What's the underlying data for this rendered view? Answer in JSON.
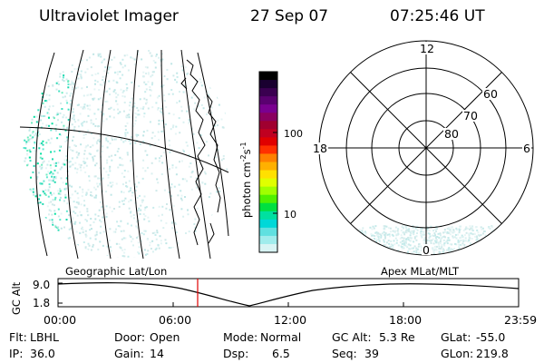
{
  "header": {
    "instrument": "Ultraviolet Imager",
    "date": "27 Sep 07",
    "time": "07:25:46 UT"
  },
  "colorbar": {
    "label": "photon cm",
    "label_sup1": "-2",
    "label_s": "s",
    "label_sup2": "-1",
    "ticks": [
      "100",
      "10"
    ],
    "colors_top_to_bottom": [
      "#000000",
      "#1a0030",
      "#3a0050",
      "#5a0070",
      "#7a0090",
      "#8a0060",
      "#a00030",
      "#c00020",
      "#e00000",
      "#ff3000",
      "#ff8000",
      "#ffb000",
      "#ffe000",
      "#e0ff00",
      "#a0ff00",
      "#50f000",
      "#00e040",
      "#00e0a0",
      "#00d8d8",
      "#60e0e0",
      "#a0ecec",
      "#d8f4f4"
    ]
  },
  "polar": {
    "mlt_labels": {
      "top": "12",
      "left": "18",
      "right": "6",
      "bottom": "0"
    },
    "lat_labels": [
      "60",
      "70",
      "80"
    ]
  },
  "timeline": {
    "left_caption": "Geographic Lat/Lon",
    "right_caption": "Apex MLat/MLT",
    "y_axis_title": "GC Alt",
    "y_ticks": [
      "9.0",
      "1.8"
    ],
    "x_ticks": [
      "00:00",
      "06:00",
      "12:00",
      "18:00",
      "23:59"
    ],
    "current_time_color": "#e00000"
  },
  "footer": {
    "row1": [
      {
        "label": "Flt:",
        "value": "LBHL"
      },
      {
        "label": "Door:",
        "value": "Open"
      },
      {
        "label": "Mode:",
        "value": "Normal"
      },
      {
        "label": "GC Alt:",
        "value": "5.3 Re"
      },
      {
        "label": "GLat:",
        "value": "-55.0"
      }
    ],
    "row2": [
      {
        "label": "IP:",
        "value": "36.0"
      },
      {
        "label": "Gain:",
        "value": "14"
      },
      {
        "label": "Dsp:",
        "value": "6.5"
      },
      {
        "label": "Seq:",
        "value": "39"
      },
      {
        "label": "GLon:",
        "value": "219.8"
      }
    ]
  }
}
